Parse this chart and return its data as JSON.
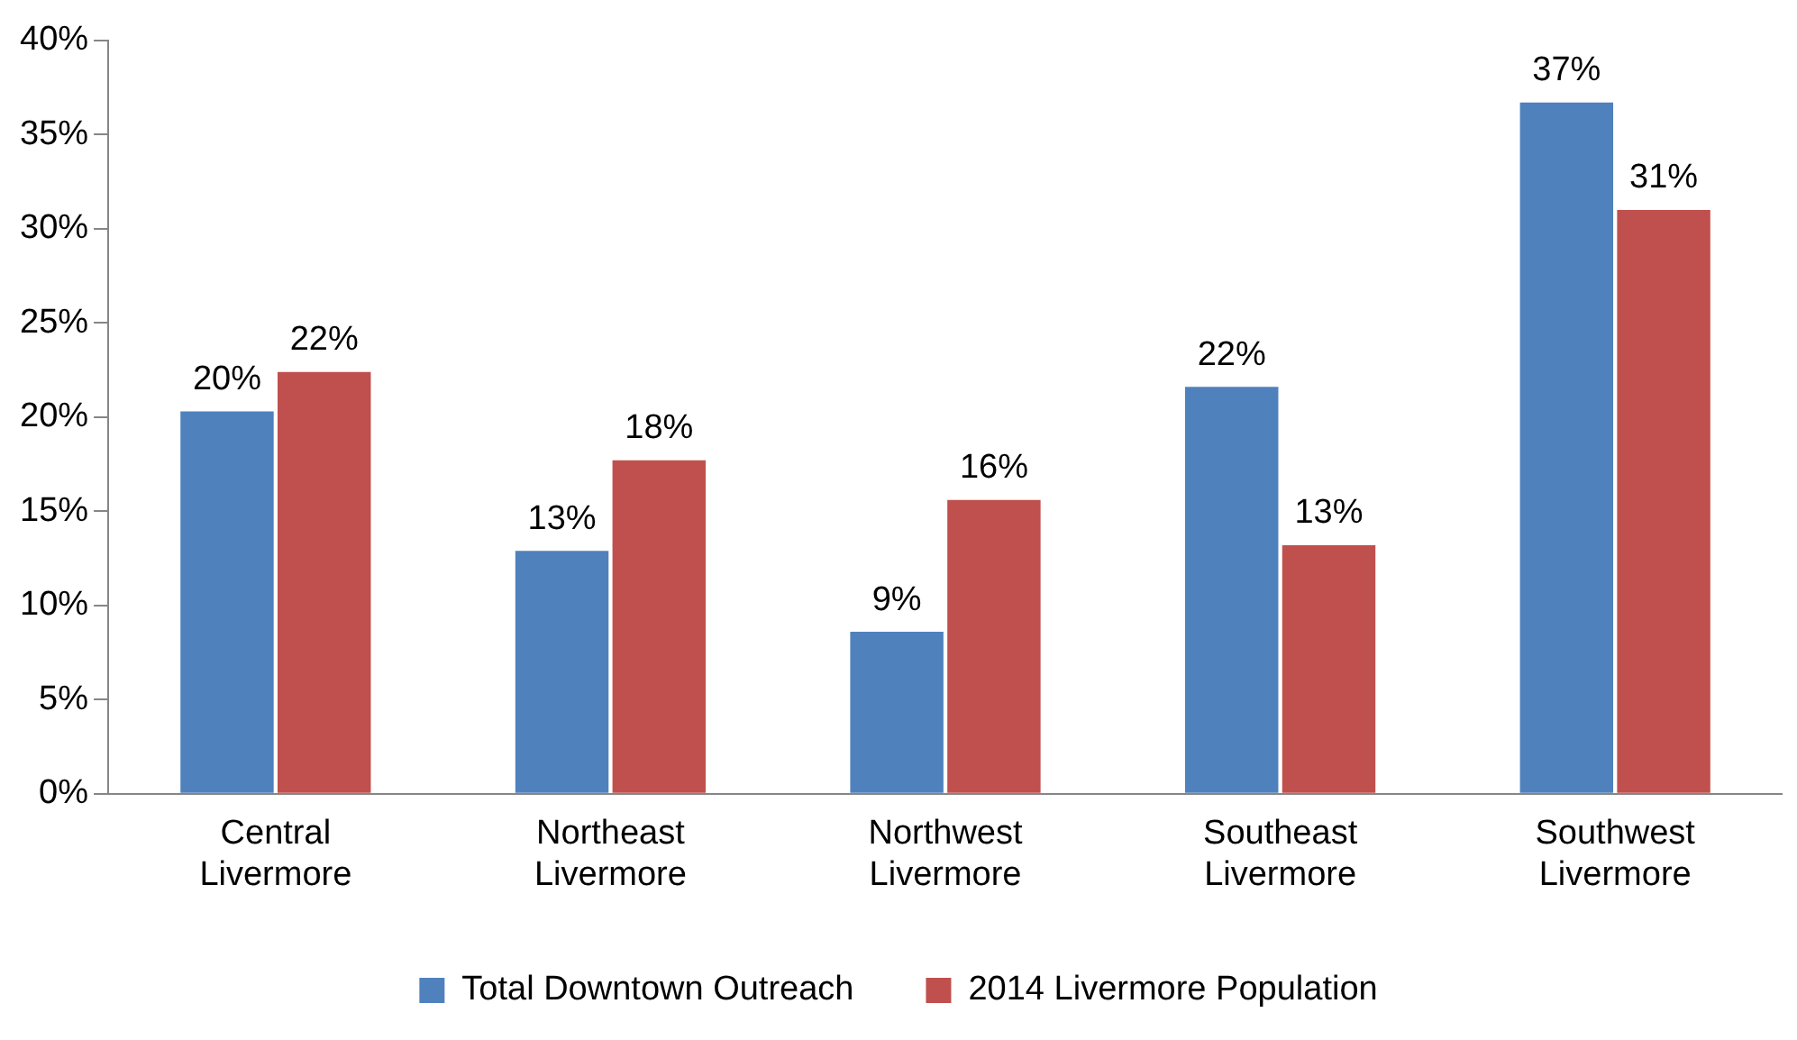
{
  "chart_data": {
    "type": "bar",
    "categories": [
      "Central Livermore",
      "Northeast Livermore",
      "Northwest Livermore",
      "Southeast Livermore",
      "Southwest Livermore"
    ],
    "series": [
      {
        "name": "Total Downtown Outreach",
        "color": "#4f81bd",
        "values": [
          20.3,
          12.9,
          8.6,
          21.6,
          36.7
        ],
        "value_labels": [
          "20%",
          "13%",
          "9%",
          "22%",
          "37%"
        ]
      },
      {
        "name": "2014 Livermore Population",
        "color": "#c0504d",
        "values": [
          22.4,
          17.7,
          15.6,
          13.2,
          31.0
        ],
        "value_labels": [
          "22%",
          "18%",
          "16%",
          "13%",
          "31%"
        ]
      }
    ],
    "ylim": [
      0,
      40
    ],
    "yticks": [
      {
        "value": 0,
        "label": "0%"
      },
      {
        "value": 5,
        "label": "5%"
      },
      {
        "value": 10,
        "label": "10%"
      },
      {
        "value": 15,
        "label": "15%"
      },
      {
        "value": 20,
        "label": "20%"
      },
      {
        "value": 25,
        "label": "25%"
      },
      {
        "value": 30,
        "label": "30%"
      },
      {
        "value": 35,
        "label": "35%"
      },
      {
        "value": 40,
        "label": "40%"
      }
    ],
    "legend": "bottom"
  }
}
